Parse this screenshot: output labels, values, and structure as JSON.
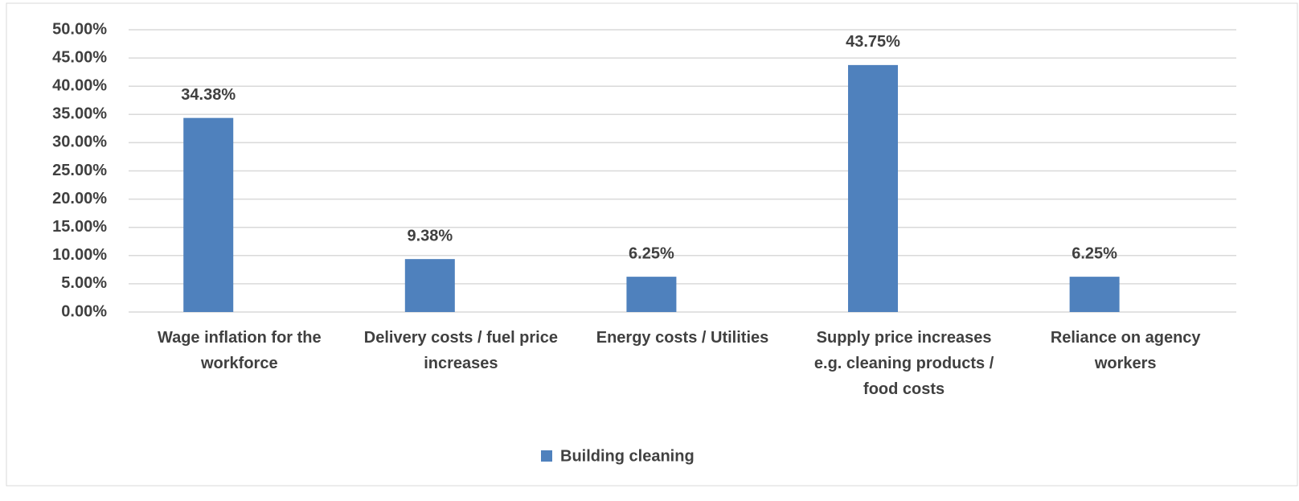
{
  "chart_data": {
    "type": "bar",
    "categories": [
      "Wage inflation for the workforce",
      "Delivery costs / fuel price increases",
      "Energy costs / Utilities",
      "Supply price increases e.g. cleaning products / food costs",
      "Reliance on agency workers"
    ],
    "series": [
      {
        "name": "Building cleaning",
        "color": "#4f81bd",
        "values": [
          34.38,
          9.38,
          6.25,
          43.75,
          6.25
        ],
        "value_labels": [
          "34.38%",
          "9.38%",
          "6.25%",
          "43.75%",
          "6.25%"
        ]
      }
    ],
    "ylim": [
      0,
      50
    ],
    "yticks": [
      {
        "value": 0,
        "label": "0.00%"
      },
      {
        "value": 5,
        "label": "5.00%"
      },
      {
        "value": 10,
        "label": "10.00%"
      },
      {
        "value": 15,
        "label": "15.00%"
      },
      {
        "value": 20,
        "label": "20.00%"
      },
      {
        "value": 25,
        "label": "25.00%"
      },
      {
        "value": 30,
        "label": "30.00%"
      },
      {
        "value": 35,
        "label": "35.00%"
      },
      {
        "value": 40,
        "label": "40.00%"
      },
      {
        "value": 45,
        "label": "45.00%"
      },
      {
        "value": 50,
        "label": "50.00%"
      }
    ],
    "grid": true,
    "legend": "bottom"
  }
}
